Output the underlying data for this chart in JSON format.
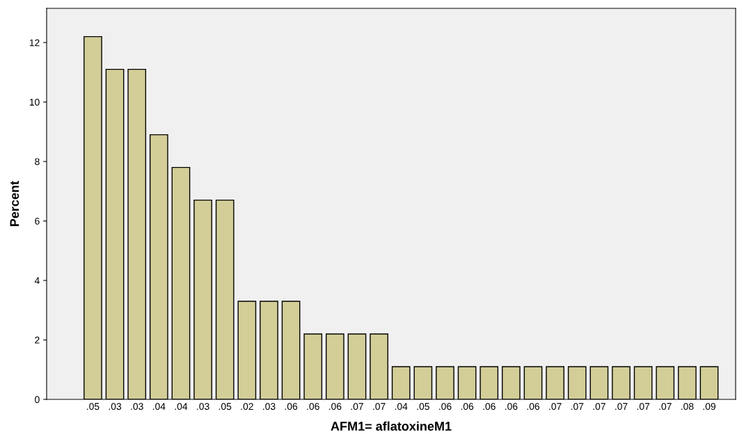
{
  "chart_data": {
    "type": "bar",
    "xlabel": "AFM1= aflatoxineM1",
    "ylabel": "Percent",
    "categories": [
      ".05",
      ".03",
      ".03",
      ".04",
      ".04",
      ".03",
      ".05",
      ".02",
      ".03",
      ".06",
      ".06",
      ".06",
      ".07",
      ".07",
      ".04",
      ".05",
      ".06",
      ".06",
      ".06",
      ".06",
      ".06",
      ".07",
      ".07",
      ".07",
      ".07",
      ".07",
      ".07",
      ".08",
      ".09"
    ],
    "values": [
      12.2,
      11.1,
      11.1,
      8.9,
      7.8,
      6.7,
      6.7,
      3.3,
      3.3,
      3.3,
      2.2,
      2.2,
      2.2,
      2.2,
      1.1,
      1.1,
      1.1,
      1.1,
      1.1,
      1.1,
      1.1,
      1.1,
      1.1,
      1.1,
      1.1,
      1.1,
      1.1,
      1.1,
      1.1
    ],
    "color": "#d3ce98",
    "ylim": [
      0,
      13.15
    ],
    "yticks": [
      0,
      2,
      4,
      6,
      8,
      10,
      12
    ],
    "grid": false,
    "legend": false
  }
}
